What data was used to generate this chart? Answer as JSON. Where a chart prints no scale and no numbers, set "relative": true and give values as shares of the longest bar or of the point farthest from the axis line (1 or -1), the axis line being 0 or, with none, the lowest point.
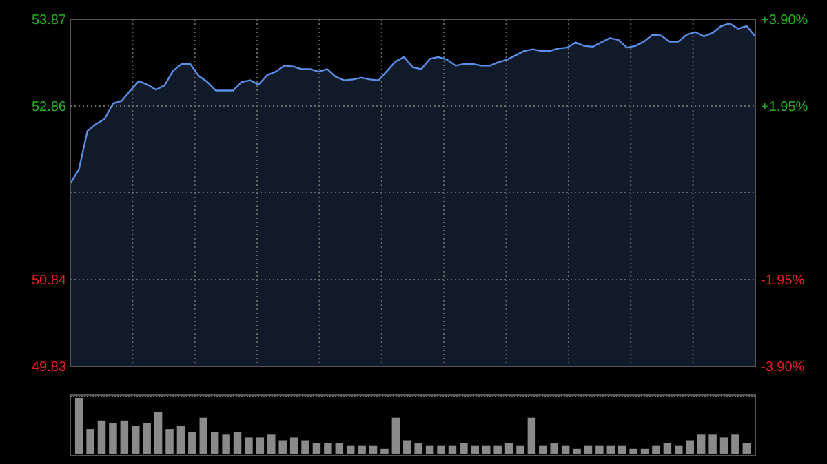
{
  "chart_data": [
    {
      "type": "area",
      "categories": [
        null,
        null,
        null,
        null,
        null,
        null,
        null,
        null,
        null,
        null,
        null,
        null,
        null,
        null,
        null,
        null,
        null,
        null,
        null,
        null,
        null,
        null,
        null,
        null,
        null,
        null,
        null,
        null,
        null,
        null,
        null,
        null,
        null,
        null,
        null,
        null,
        null,
        null,
        null,
        null,
        null,
        null,
        null,
        null,
        null,
        null,
        null,
        null,
        null,
        null,
        null,
        null,
        null,
        null,
        null,
        null,
        null,
        null,
        null,
        null,
        null,
        null,
        null,
        null,
        null,
        null,
        null,
        null,
        null,
        null,
        null,
        null,
        null,
        null,
        null,
        null,
        null,
        null,
        null,
        null,
        null
      ],
      "series": [
        {
          "color": "#5b8ee6",
          "values": [
            51.96,
            52.12,
            52.57,
            52.65,
            52.71,
            52.89,
            52.92,
            53.04,
            53.15,
            53.11,
            53.05,
            53.1,
            53.27,
            53.35,
            53.35,
            53.21,
            53.14,
            53.04,
            53.04,
            53.04,
            53.14,
            53.16,
            53.11,
            53.22,
            53.26,
            53.33,
            53.32,
            53.29,
            53.29,
            53.26,
            53.29,
            53.2,
            53.16,
            53.17,
            53.19,
            53.17,
            53.16,
            53.27,
            53.38,
            53.43,
            53.31,
            53.29,
            53.41,
            53.43,
            53.4,
            53.33,
            53.35,
            53.35,
            53.33,
            53.33,
            53.37,
            53.4,
            53.45,
            53.5,
            53.52,
            53.5,
            53.5,
            53.53,
            53.54,
            53.6,
            53.56,
            53.55,
            53.6,
            53.65,
            53.63,
            53.54,
            53.56,
            53.61,
            53.69,
            53.68,
            53.61,
            53.61,
            53.69,
            53.72,
            53.67,
            53.71,
            53.79,
            53.82,
            53.76,
            53.79,
            53.67
          ]
        }
      ],
      "ylim": [
        49.83,
        53.87
      ],
      "yticks": [
        49.83,
        50.84,
        {
          "value": 51.85,
          "label": null
        },
        52.86,
        53.87
      ],
      "y2lim": [
        -3.9,
        3.9
      ],
      "y2ticks": [
        {
          "value": -3.9,
          "label": "-3.90%"
        },
        {
          "value": -1.95,
          "label": "-1.95%"
        },
        {
          "value": 0,
          "label": null
        },
        {
          "value": 1.95,
          "label": "+1.95%"
        },
        {
          "value": 3.9,
          "label": "+3.90%"
        }
      ],
      "tick_labels": "y",
      "grid": true
    },
    {
      "type": "bar",
      "relative": true,
      "categories": [
        null,
        null,
        null,
        null,
        null,
        null,
        null,
        null,
        null,
        null,
        null,
        null,
        null,
        null,
        null,
        null,
        null,
        null,
        null,
        null,
        null,
        null,
        null,
        null,
        null,
        null,
        null,
        null,
        null,
        null,
        null,
        null,
        null,
        null,
        null,
        null,
        null,
        null,
        null,
        null,
        null,
        null,
        null,
        null,
        null,
        null,
        null,
        null,
        null,
        null,
        null,
        null,
        null,
        null,
        null,
        null,
        null,
        null,
        null,
        null
      ],
      "series": [
        {
          "color": "#8a8a8a",
          "values": [
            1,
            0.45,
            0.6,
            0.55,
            0.6,
            0.5,
            0.55,
            0.75,
            0.45,
            0.5,
            0.4,
            0.65,
            0.4,
            0.35,
            0.4,
            0.3,
            0.3,
            0.35,
            0.25,
            0.3,
            0.25,
            0.2,
            0.2,
            0.2,
            0.15,
            0.15,
            0.15,
            0.1,
            0.65,
            0.25,
            0.2,
            0.15,
            0.15,
            0.15,
            0.2,
            0.15,
            0.15,
            0.15,
            0.2,
            0.15,
            0.65,
            0.15,
            0.2,
            0.15,
            0.1,
            0.15,
            0.15,
            0.15,
            0.15,
            0.1,
            0.1,
            0.15,
            0.2,
            0.15,
            0.25,
            0.35,
            0.35,
            0.3,
            0.35,
            0.2
          ]
        }
      ]
    }
  ]
}
